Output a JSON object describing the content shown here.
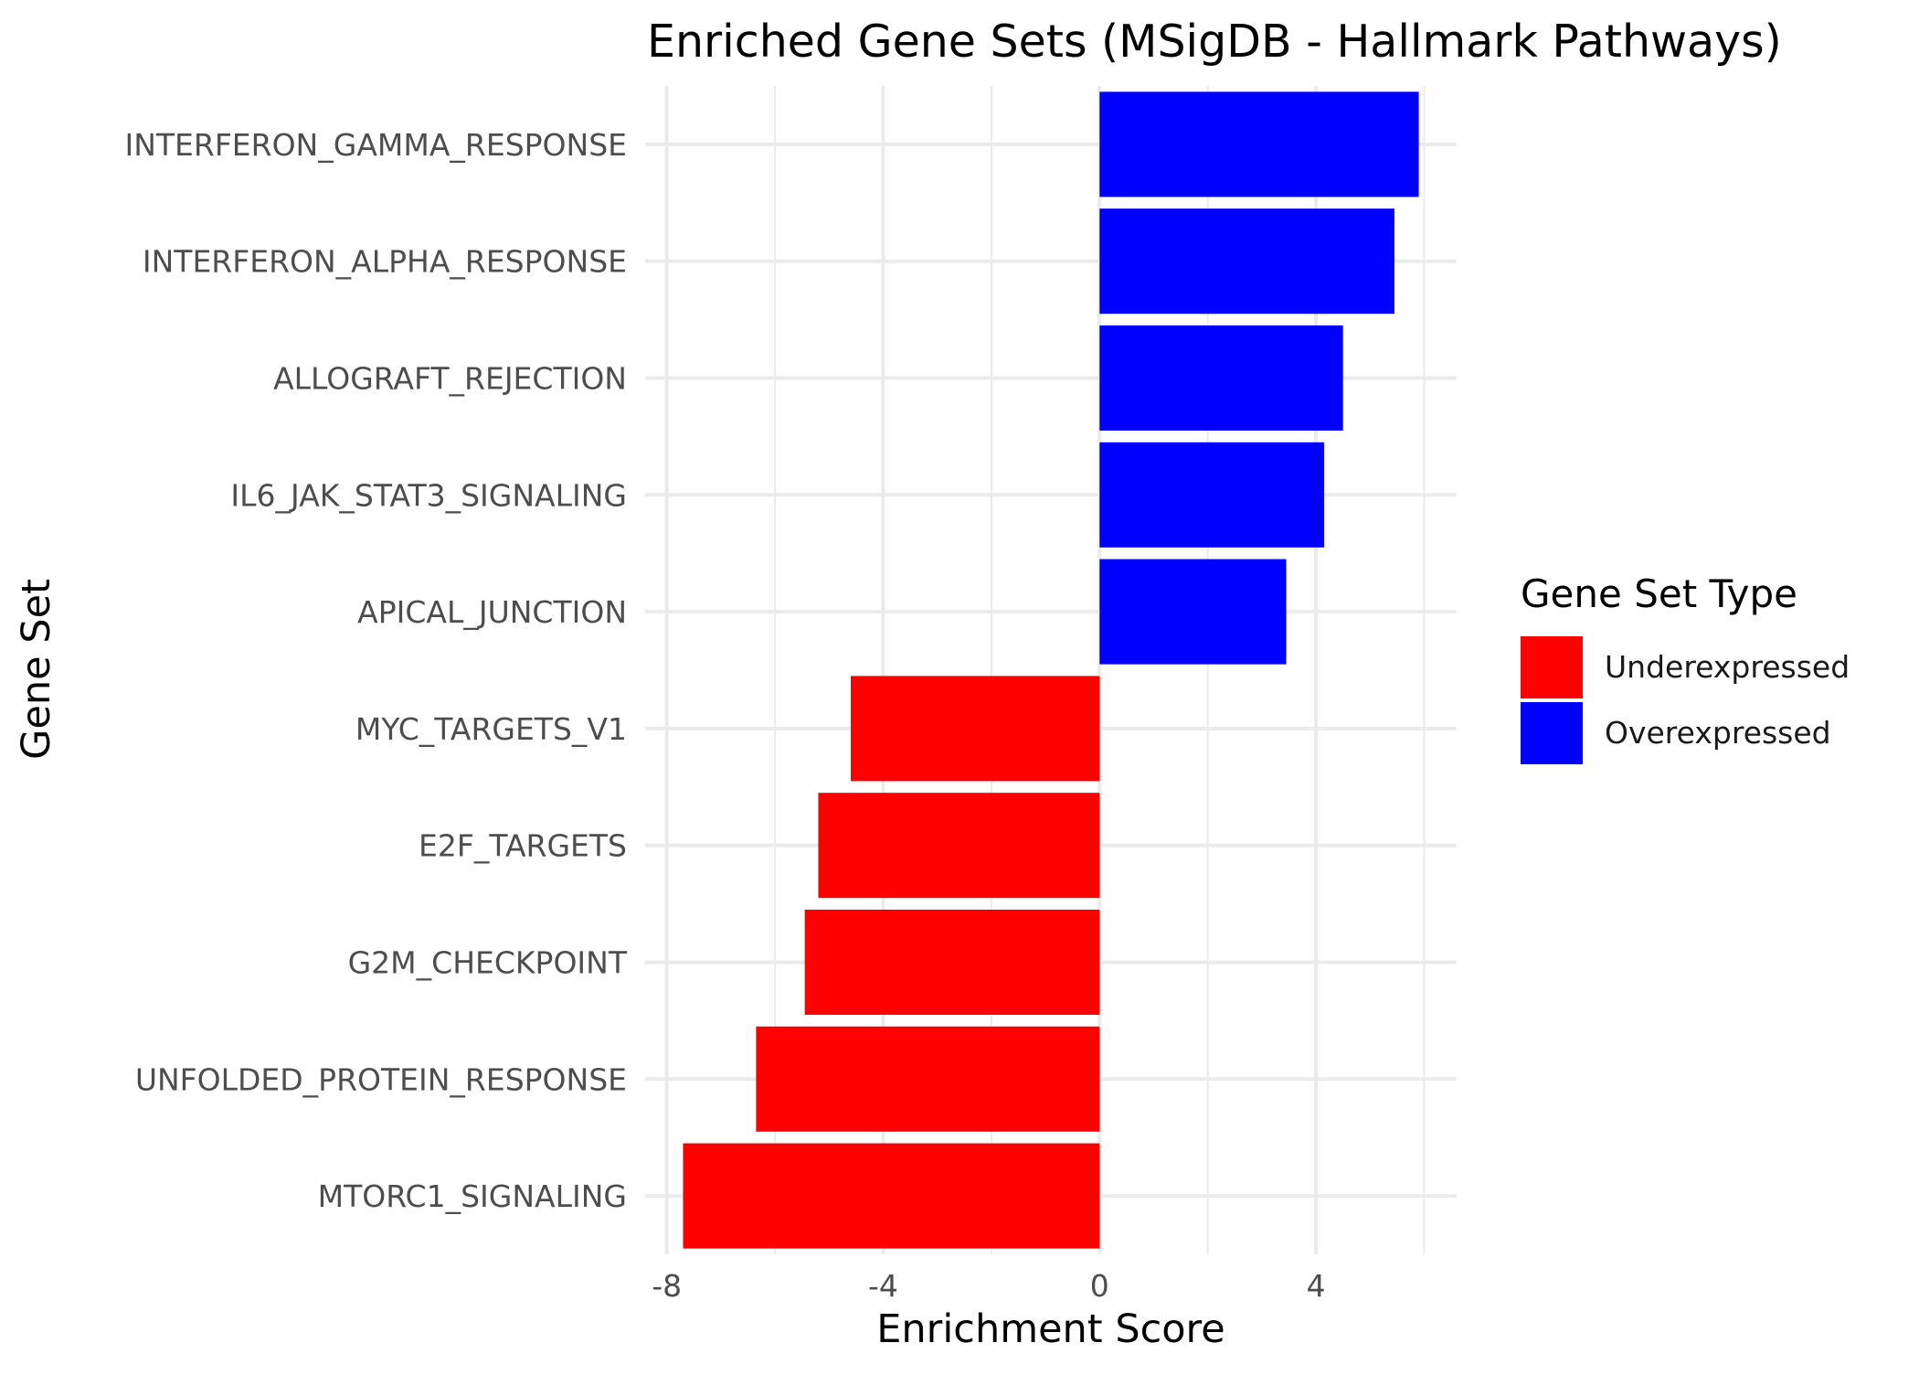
{
  "chart_data": {
    "type": "bar",
    "orientation": "horizontal",
    "title": "Enriched Gene Sets (MSigDB - Hallmark Pathways)",
    "xlabel": "Enrichment Score",
    "ylabel": "Gene Set",
    "xlim": [
      -8.4,
      6.6
    ],
    "x_ticks": [
      -8,
      -4,
      0,
      4
    ],
    "x_tick_labels": [
      "-8",
      "-4",
      "0",
      "4"
    ],
    "grid": true,
    "legend": {
      "title": "Gene Set Type",
      "placement": "right",
      "entries": [
        {
          "label": "Underexpressed",
          "color": "#ff0000"
        },
        {
          "label": "Overexpressed",
          "color": "#0000ff"
        }
      ]
    },
    "categories": [
      "INTERFERON_GAMMA_RESPONSE",
      "INTERFERON_ALPHA_RESPONSE",
      "ALLOGRAFT_REJECTION",
      "IL6_JAK_STAT3_SIGNALING",
      "APICAL_JUNCTION",
      "MYC_TARGETS_V1",
      "E2F_TARGETS",
      "G2M_CHECKPOINT",
      "UNFOLDED_PROTEIN_RESPONSE",
      "MTORC1_SIGNALING"
    ],
    "values": [
      5.9,
      5.45,
      4.5,
      4.15,
      3.45,
      -4.6,
      -5.2,
      -5.45,
      -6.35,
      -7.7
    ],
    "types": [
      "Overexpressed",
      "Overexpressed",
      "Overexpressed",
      "Overexpressed",
      "Overexpressed",
      "Underexpressed",
      "Underexpressed",
      "Underexpressed",
      "Underexpressed",
      "Underexpressed"
    ]
  }
}
